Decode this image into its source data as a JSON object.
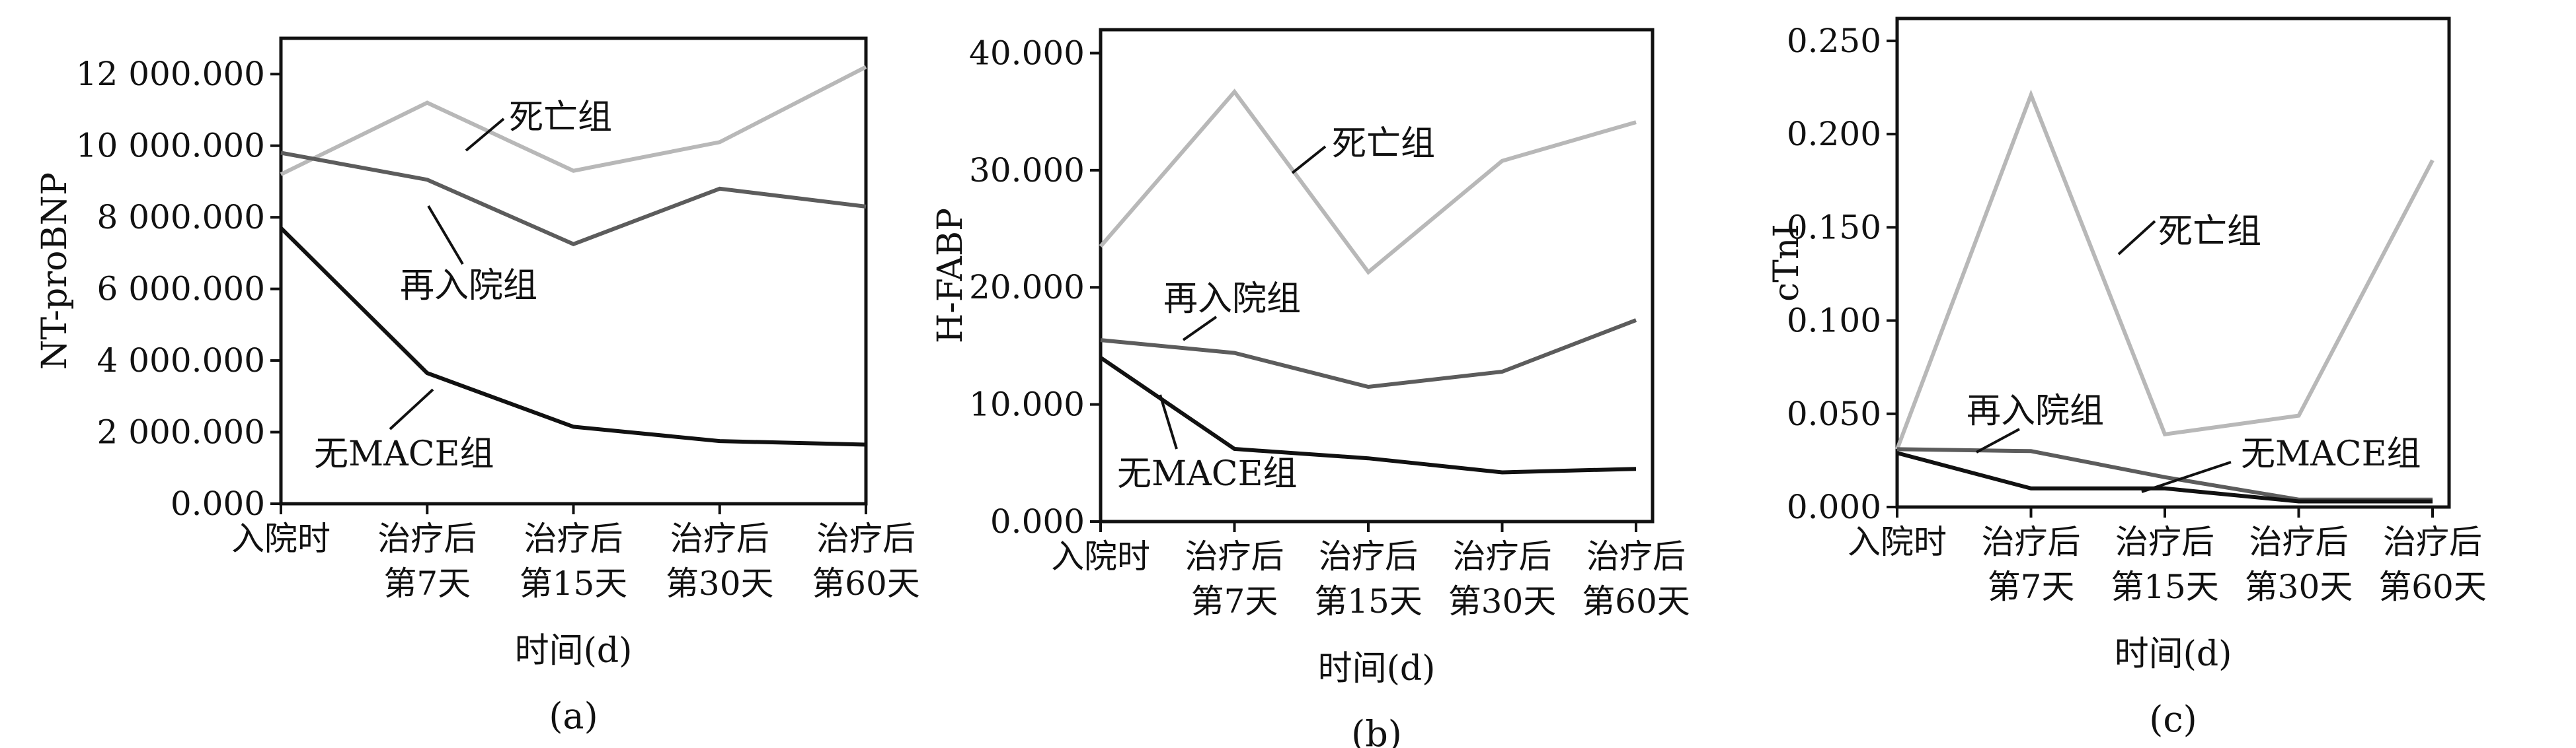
{
  "chart_data": [
    {
      "type": "line",
      "panel_label": "(a)",
      "xlabel": "时间(d)",
      "ylabel": "NT-proBNP",
      "categories": [
        [
          "入院时"
        ],
        [
          "治疗后",
          "第7天"
        ],
        [
          "治疗后",
          "第15天"
        ],
        [
          "治疗后",
          "第30天"
        ],
        [
          "治疗后",
          "第60天"
        ]
      ],
      "ylim": [
        0,
        13000
      ],
      "yticks": [
        0,
        2000,
        4000,
        6000,
        8000,
        10000,
        12000
      ],
      "ytick_labels": [
        "0.000",
        "2 000.000",
        "4 000.000",
        "6 000.000",
        "8 000.000",
        "10 000.000",
        "12 000.000"
      ],
      "series": [
        {
          "name": "死亡组",
          "color": "#b8b8b8",
          "values": [
            9200,
            11200,
            9300,
            10100,
            12200
          ]
        },
        {
          "name": "再入院组",
          "color": "#5c5c5c",
          "values": [
            9800,
            9050,
            7250,
            8800,
            8300
          ]
        },
        {
          "name": "无MACE组",
          "color": "#111111",
          "values": [
            7700,
            3650,
            2150,
            1750,
            1650
          ]
        }
      ],
      "grid": false
    },
    {
      "type": "line",
      "panel_label": "(b)",
      "xlabel": "时间(d)",
      "ylabel": "H-FABP",
      "categories": [
        [
          "入院时"
        ],
        [
          "治疗后",
          "第7天"
        ],
        [
          "治疗后",
          "第15天"
        ],
        [
          "治疗后",
          "第30天"
        ],
        [
          "治疗后",
          "第60天"
        ]
      ],
      "ylim": [
        0,
        42
      ],
      "yticks": [
        0,
        10,
        20,
        30,
        40
      ],
      "ytick_labels": [
        "0.000",
        "10.000",
        "20.000",
        "30.000",
        "40.000"
      ],
      "series": [
        {
          "name": "死亡组",
          "color": "#b8b8b8",
          "values": [
            23.5,
            36.7,
            21.3,
            30.8,
            34.1
          ]
        },
        {
          "name": "再入院组",
          "color": "#5c5c5c",
          "values": [
            15.5,
            14.4,
            11.5,
            12.8,
            17.2
          ]
        },
        {
          "name": "无MACE组",
          "color": "#111111",
          "values": [
            14.0,
            6.2,
            5.4,
            4.2,
            4.5
          ]
        }
      ],
      "grid": false
    },
    {
      "type": "line",
      "panel_label": "(c)",
      "xlabel": "时间(d)",
      "ylabel": "cTnI",
      "categories": [
        [
          "入院时"
        ],
        [
          "治疗后",
          "第7天"
        ],
        [
          "治疗后",
          "第15天"
        ],
        [
          "治疗后",
          "第30天"
        ],
        [
          "治疗后",
          "第60天"
        ]
      ],
      "ylim": [
        0,
        0.262
      ],
      "yticks": [
        0,
        0.05,
        0.1,
        0.15,
        0.2,
        0.25
      ],
      "ytick_labels": [
        "0.000",
        "0.050",
        "0.100",
        "0.150",
        "0.200",
        "0.250"
      ],
      "series": [
        {
          "name": "死亡组",
          "color": "#b8b8b8",
          "values": [
            0.031,
            0.221,
            0.039,
            0.049,
            0.186
          ]
        },
        {
          "name": "再入院组",
          "color": "#5c5c5c",
          "values": [
            0.031,
            0.03,
            0.016,
            0.004,
            0.004
          ]
        },
        {
          "name": "无MACE组",
          "color": "#111111",
          "values": [
            0.029,
            0.01,
            0.01,
            0.003,
            0.003
          ]
        }
      ],
      "grid": false
    }
  ]
}
